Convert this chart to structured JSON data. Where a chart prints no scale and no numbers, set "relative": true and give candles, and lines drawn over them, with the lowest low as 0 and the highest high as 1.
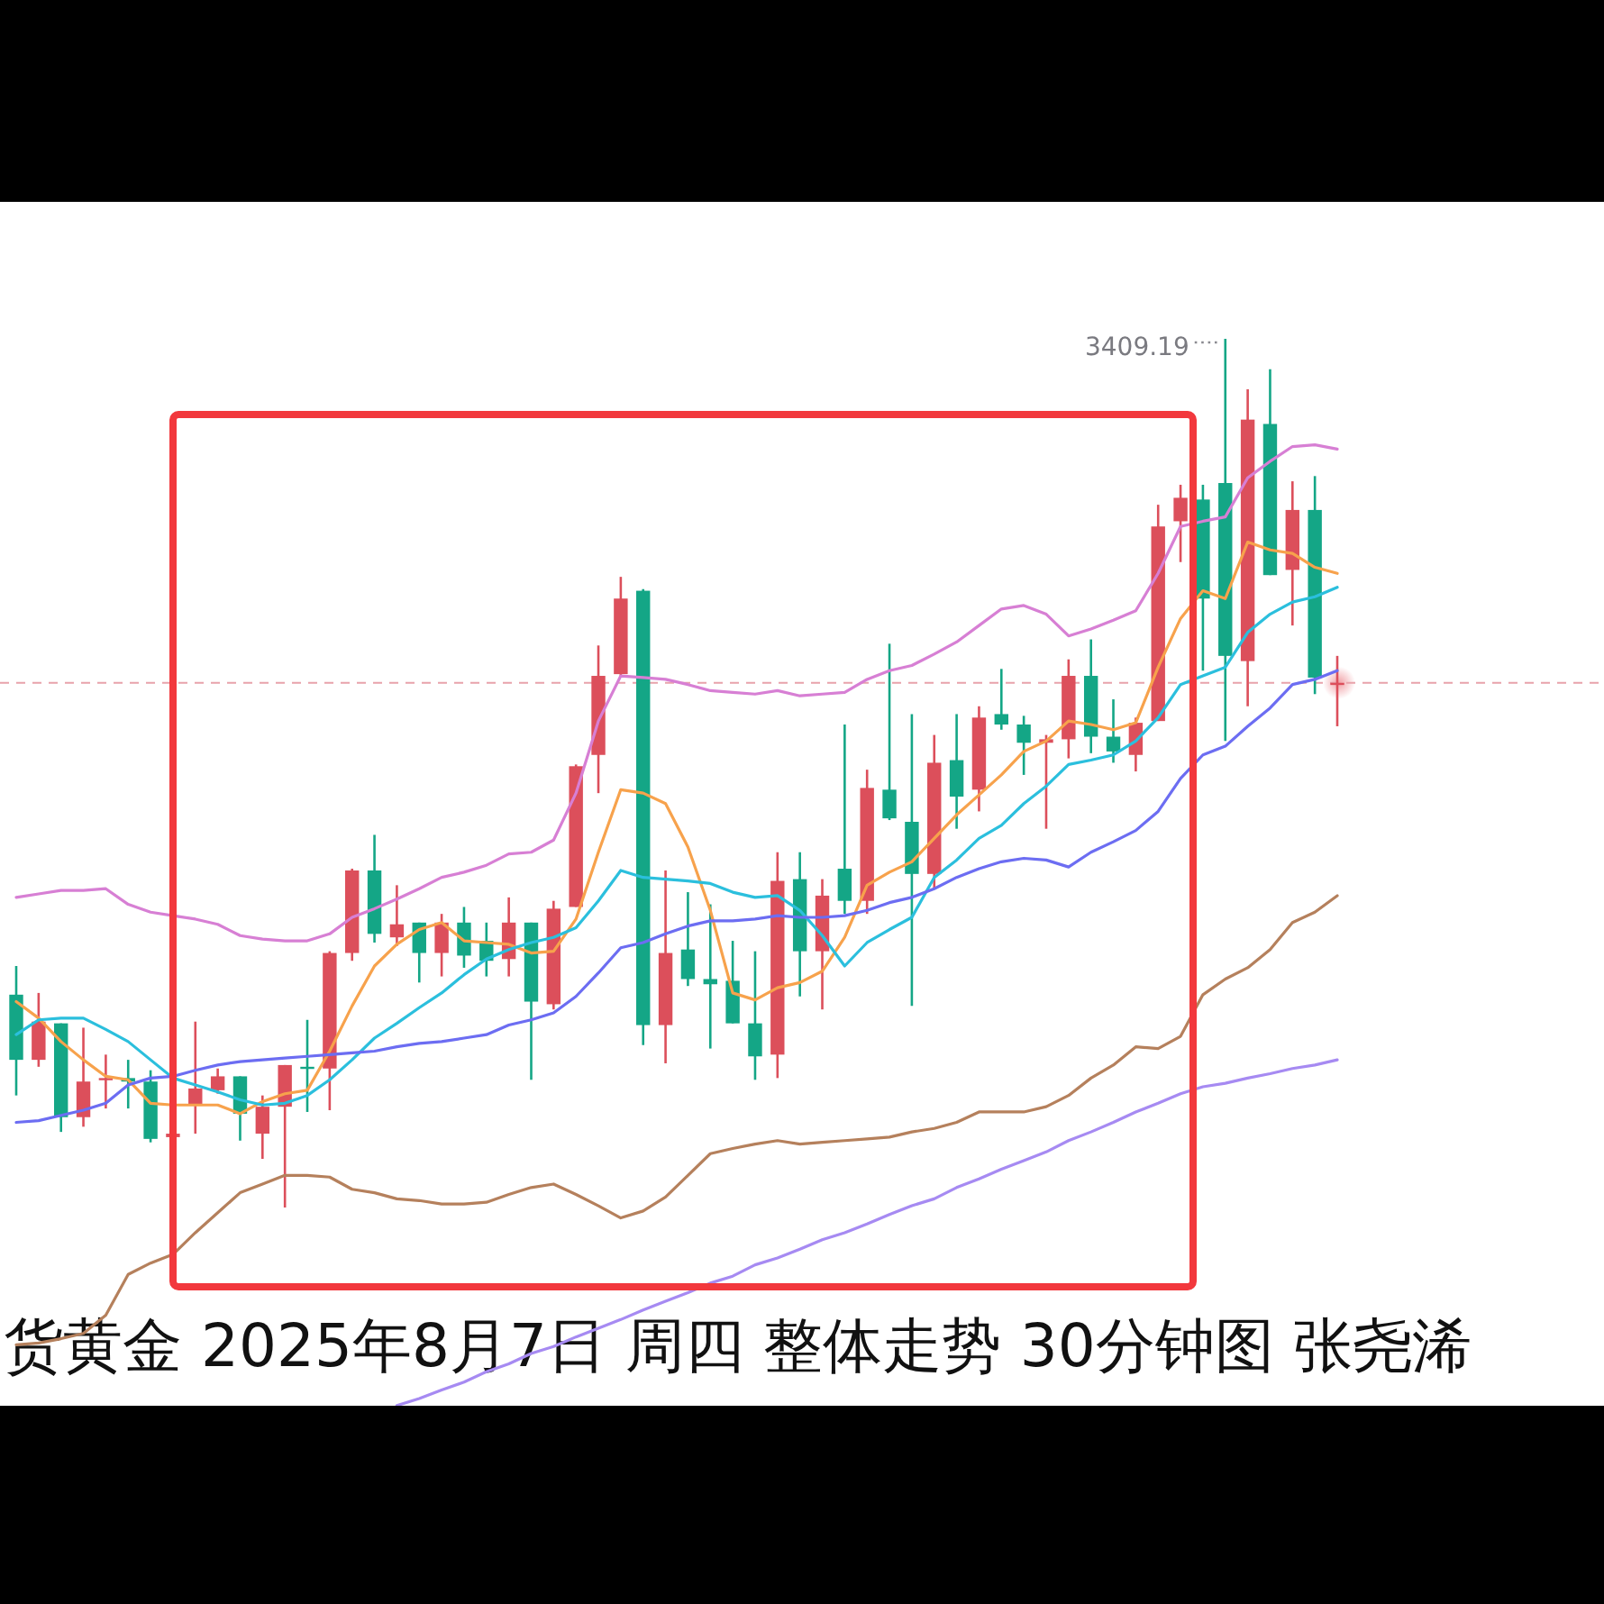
{
  "chart_data": {
    "type": "candlestick",
    "title": "货黄金 2025年8月7日 周四 整体走势 30分钟图 张尧浠",
    "relative": true,
    "categories": [
      null,
      null,
      null,
      null,
      null,
      null,
      null,
      null,
      null,
      null,
      null,
      null,
      null,
      null,
      null,
      null,
      null,
      null,
      null,
      null,
      null,
      null,
      null,
      null,
      null,
      null,
      null,
      null,
      null,
      null,
      null,
      null,
      null,
      null,
      null,
      null,
      null,
      null,
      null,
      null,
      null,
      null,
      null,
      null,
      null,
      null,
      null,
      null,
      null,
      null,
      null,
      null,
      null,
      null,
      null,
      null,
      null,
      null,
      null,
      null
    ],
    "ohlc": [
      [
        0.245,
        0.278,
        0.129,
        0.17
      ],
      [
        0.17,
        0.247,
        0.162,
        0.214
      ],
      [
        0.212,
        0.212,
        0.087,
        0.104
      ],
      [
        0.104,
        0.207,
        0.093,
        0.145
      ],
      [
        0.147,
        0.176,
        0.114,
        0.149
      ],
      [
        0.149,
        0.17,
        0.114,
        0.145
      ],
      [
        0.145,
        0.158,
        0.075,
        0.079
      ],
      [
        0.081,
        0.089,
        0.077,
        0.085
      ],
      [
        0.118,
        0.214,
        0.085,
        0.137
      ],
      [
        0.135,
        0.16,
        0.131,
        0.151
      ],
      [
        0.151,
        0.151,
        0.077,
        0.108
      ],
      [
        0.085,
        0.129,
        0.056,
        0.116
      ],
      [
        0.116,
        0.164,
        0,
        0.164
      ],
      [
        0.162,
        0.216,
        0.11,
        0.16
      ],
      [
        0.16,
        0.295,
        0.112,
        0.293
      ],
      [
        0.293,
        0.39,
        0.284,
        0.388
      ],
      [
        0.388,
        0.429,
        0.305,
        0.315
      ],
      [
        0.311,
        0.371,
        0.301,
        0.326
      ],
      [
        0.328,
        0.328,
        0.259,
        0.293
      ],
      [
        0.293,
        0.338,
        0.266,
        0.328
      ],
      [
        0.328,
        0.346,
        0.276,
        0.29
      ],
      [
        0.307,
        0.328,
        0.266,
        0.284
      ],
      [
        0.286,
        0.357,
        0.266,
        0.328
      ],
      [
        0.328,
        0.328,
        0.147,
        0.237
      ],
      [
        0.234,
        0.353,
        0.228,
        0.344
      ],
      [
        0.346,
        0.51,
        0.346,
        0.508
      ],
      [
        0.521,
        0.647,
        0.477,
        0.612
      ],
      [
        0.614,
        0.726,
        0.612,
        0.701
      ],
      [
        0.71,
        0.712,
        0.187,
        0.21
      ],
      [
        0.21,
        0.388,
        0.166,
        0.293
      ],
      [
        0.297,
        0.363,
        0.255,
        0.263
      ],
      [
        0.263,
        0.349,
        0.183,
        0.257
      ],
      [
        0.261,
        0.307,
        0.212,
        0.212
      ],
      [
        0.212,
        0.295,
        0.147,
        0.174
      ],
      [
        0.176,
        0.409,
        0.149,
        0.376
      ],
      [
        0.378,
        0.409,
        0.243,
        0.295
      ],
      [
        0.295,
        0.378,
        0.228,
        0.359
      ],
      [
        0.39,
        0.556,
        0.338,
        0.353
      ],
      [
        0.353,
        0.504,
        0.338,
        0.483
      ],
      [
        0.481,
        0.649,
        0.446,
        0.448
      ],
      [
        0.444,
        0.568,
        0.232,
        0.384
      ],
      [
        0.384,
        0.544,
        0.367,
        0.512
      ],
      [
        0.515,
        0.568,
        0.436,
        0.473
      ],
      [
        0.481,
        0.577,
        0.456,
        0.564
      ],
      [
        0.568,
        0.62,
        0.55,
        0.556
      ],
      [
        0.556,
        0.566,
        0.498,
        0.535
      ],
      [
        0.535,
        0.544,
        0.436,
        0.539
      ],
      [
        0.539,
        0.631,
        0.517,
        0.612
      ],
      [
        0.612,
        0.654,
        0.523,
        0.542
      ],
      [
        0.542,
        0.585,
        0.512,
        0.525
      ],
      [
        0.521,
        0.564,
        0.502,
        0.558
      ],
      [
        0.56,
        0.809,
        0.56,
        0.784
      ],
      [
        0.79,
        0.832,
        0.743,
        0.817
      ],
      [
        0.815,
        0.832,
        0.618,
        0.701
      ],
      [
        0.834,
        1,
        0.537,
        0.635
      ],
      [
        0.629,
        0.942,
        0.577,
        0.907
      ],
      [
        0.902,
        0.965,
        0.728,
        0.728
      ],
      [
        0.734,
        0.836,
        0.67,
        0.803
      ],
      [
        0.803,
        0.842,
        0.591,
        0.61
      ],
      [
        0.602,
        0.635,
        0.554,
        0.604
      ]
    ],
    "colors": [
      "#14a686",
      "#dc4f5b",
      "#14a686",
      "#dc4f5b",
      "#dc4f5b",
      "#14a686",
      "#14a686",
      "#dc4f5b",
      "#dc4f5b",
      "#dc4f5b",
      "#14a686",
      "#dc4f5b",
      "#dc4f5b",
      "#14a686",
      "#dc4f5b",
      "#dc4f5b",
      "#14a686",
      "#dc4f5b",
      "#14a686",
      "#dc4f5b",
      "#14a686",
      "#14a686",
      "#dc4f5b",
      "#14a686",
      "#dc4f5b",
      "#dc4f5b",
      "#dc4f5b",
      "#dc4f5b",
      "#14a686",
      "#dc4f5b",
      "#14a686",
      "#14a686",
      "#14a686",
      "#14a686",
      "#dc4f5b",
      "#14a686",
      "#dc4f5b",
      "#14a686",
      "#dc4f5b",
      "#14a686",
      "#14a686",
      "#dc4f5b",
      "#14a686",
      "#dc4f5b",
      "#14a686",
      "#14a686",
      "#dc4f5b",
      "#dc4f5b",
      "#14a686",
      "#14a686",
      "#dc4f5b",
      "#dc4f5b",
      "#dc4f5b",
      "#14a686",
      "#14a686",
      "#dc4f5b",
      "#14a686",
      "#dc4f5b",
      "#14a686",
      "#dc4f5b"
    ],
    "series": [
      {
        "type": "line",
        "color": "#d77fd4",
        "values": [
          0.357,
          0.361,
          0.365,
          0.365,
          0.367,
          0.349,
          0.34,
          0.336,
          0.332,
          0.326,
          0.313,
          0.309,
          0.307,
          0.307,
          0.315,
          0.334,
          0.344,
          0.355,
          0.367,
          0.38,
          0.386,
          0.394,
          0.407,
          0.409,
          0.423,
          0.477,
          0.56,
          0.612,
          0.61,
          0.608,
          0.602,
          0.595,
          0.593,
          0.591,
          0.595,
          0.589,
          0.591,
          0.593,
          0.608,
          0.618,
          0.624,
          0.637,
          0.651,
          0.67,
          0.689,
          0.693,
          0.683,
          0.658,
          0.666,
          0.676,
          0.687,
          0.73,
          0.784,
          0.79,
          0.795,
          0.84,
          0.859,
          0.876,
          0.878,
          0.873
        ]
      },
      {
        "type": "line",
        "color": "#f7a24c",
        "values": [
          0.237,
          0.218,
          0.191,
          0.17,
          0.151,
          0.147,
          0.12,
          0.118,
          0.118,
          0.118,
          0.108,
          0.122,
          0.131,
          0.135,
          0.18,
          0.232,
          0.278,
          0.303,
          0.32,
          0.328,
          0.307,
          0.305,
          0.303,
          0.293,
          0.295,
          0.332,
          0.409,
          0.481,
          0.477,
          0.465,
          0.415,
          0.342,
          0.247,
          0.239,
          0.253,
          0.259,
          0.272,
          0.311,
          0.371,
          0.386,
          0.398,
          0.425,
          0.452,
          0.475,
          0.498,
          0.525,
          0.537,
          0.56,
          0.556,
          0.55,
          0.558,
          0.622,
          0.678,
          0.71,
          0.701,
          0.766,
          0.757,
          0.753,
          0.737,
          0.73
        ]
      },
      {
        "type": "line",
        "color": "#2bbfdd",
        "values": [
          0.199,
          0.216,
          0.218,
          0.218,
          0.205,
          0.191,
          0.17,
          0.149,
          0.141,
          0.133,
          0.124,
          0.118,
          0.12,
          0.129,
          0.147,
          0.17,
          0.195,
          0.212,
          0.23,
          0.247,
          0.268,
          0.286,
          0.297,
          0.305,
          0.311,
          0.322,
          0.353,
          0.388,
          0.38,
          0.378,
          0.376,
          0.373,
          0.363,
          0.357,
          0.359,
          0.342,
          0.313,
          0.278,
          0.305,
          0.32,
          0.334,
          0.38,
          0.4,
          0.425,
          0.44,
          0.465,
          0.485,
          0.51,
          0.515,
          0.521,
          0.537,
          0.564,
          0.602,
          0.612,
          0.622,
          0.662,
          0.683,
          0.697,
          0.703,
          0.714
        ]
      },
      {
        "type": "line",
        "color": "#6c6df2",
        "values": [
          0.098,
          0.1,
          0.106,
          0.112,
          0.12,
          0.141,
          0.149,
          0.151,
          0.158,
          0.164,
          0.168,
          0.17,
          0.172,
          0.174,
          0.176,
          0.178,
          0.18,
          0.185,
          0.189,
          0.191,
          0.195,
          0.199,
          0.21,
          0.216,
          0.224,
          0.243,
          0.27,
          0.299,
          0.305,
          0.315,
          0.324,
          0.33,
          0.33,
          0.332,
          0.336,
          0.334,
          0.334,
          0.336,
          0.342,
          0.351,
          0.357,
          0.367,
          0.38,
          0.39,
          0.398,
          0.402,
          0.4,
          0.392,
          0.409,
          0.421,
          0.434,
          0.456,
          0.494,
          0.521,
          0.531,
          0.554,
          0.575,
          0.602,
          0.608,
          0.618
        ]
      },
      {
        "type": "line",
        "color": "#b5805c",
        "values": [
          -0.158,
          -0.156,
          -0.151,
          -0.145,
          -0.124,
          -0.077,
          -0.064,
          -0.054,
          -0.029,
          -0.006,
          0.017,
          0.027,
          0.037,
          0.037,
          0.035,
          0.021,
          0.017,
          0.01,
          0.008,
          0.004,
          0.004,
          0.006,
          0.015,
          0.023,
          0.027,
          0.015,
          0.002,
          -0.012,
          -0.004,
          0.012,
          0.037,
          0.062,
          0.068,
          0.073,
          0.077,
          0.073,
          0.075,
          0.077,
          0.079,
          0.081,
          0.087,
          0.091,
          0.098,
          0.11,
          0.11,
          0.11,
          0.116,
          0.129,
          0.149,
          0.164,
          0.185,
          0.183,
          0.197,
          0.245,
          0.263,
          0.276,
          0.297,
          0.328,
          0.34,
          0.359
        ]
      },
      {
        "type": "line",
        "color": "#a68af2",
        "values": [
          null,
          null,
          null,
          null,
          null,
          null,
          null,
          null,
          null,
          null,
          null,
          null,
          null,
          null,
          null,
          null,
          null,
          -0.228,
          -0.22,
          -0.21,
          -0.201,
          -0.189,
          -0.18,
          -0.168,
          -0.16,
          -0.149,
          -0.139,
          -0.129,
          -0.118,
          -0.108,
          -0.098,
          -0.087,
          -0.079,
          -0.066,
          -0.058,
          -0.048,
          -0.037,
          -0.029,
          -0.019,
          -0.008,
          0.002,
          0.01,
          0.023,
          0.033,
          0.044,
          0.054,
          0.064,
          0.077,
          0.087,
          0.098,
          0.11,
          0.12,
          0.131,
          0.139,
          0.143,
          0.149,
          0.154,
          0.16,
          0.164,
          0.17
        ]
      }
    ],
    "ref_lines": [
      {
        "axis": "y",
        "value": 0.604,
        "color": "#e8a3ab",
        "line_style": "dashed"
      }
    ],
    "annotations": [
      "3409.19"
    ]
  }
}
